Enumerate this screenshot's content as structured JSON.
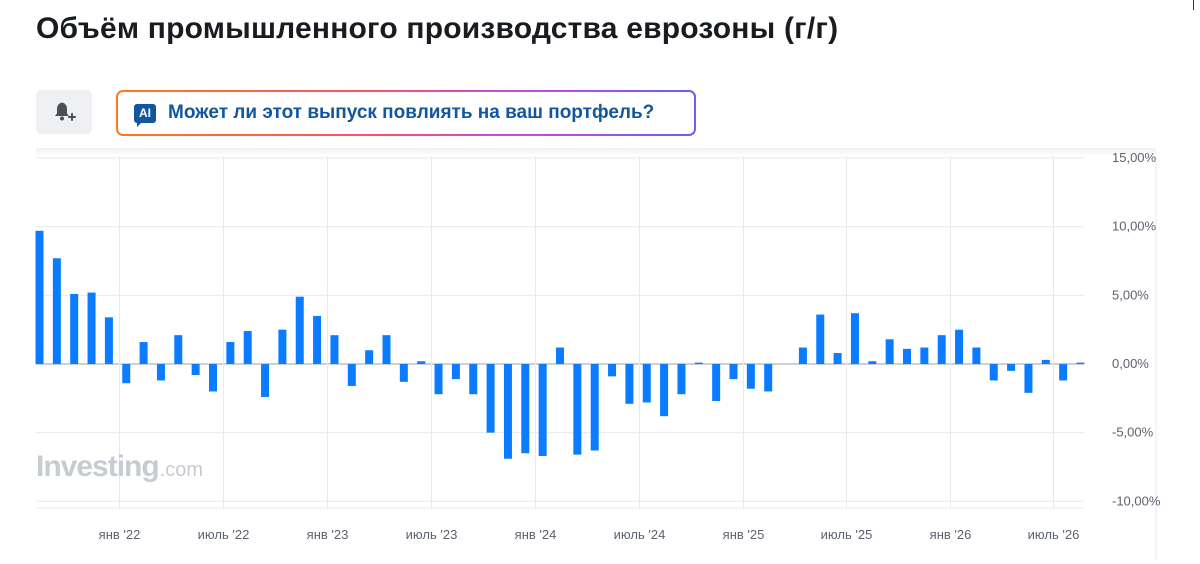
{
  "title": "Объём промышленного производства еврозоны (г/г)",
  "ai_prompt": {
    "badge": "AI",
    "label": "Может ли этот выпуск повлиять на ваш портфель?"
  },
  "watermark": {
    "main": "Investing",
    "sub": ".com"
  },
  "icons": {
    "alert": "bell-plus-icon"
  },
  "colors": {
    "bar": "#0b7cff",
    "grid": "#e6e9ee",
    "zero_line": "#9aa1ab",
    "title": "#181c21",
    "ai_text": "#1256a0"
  },
  "chart_data": {
    "type": "bar",
    "ylim": [
      -11,
      15
    ],
    "y_ticks": [
      "15,00%",
      "10,00%",
      "5,00%",
      "0,00%",
      "-5,00%",
      "-10,00%"
    ],
    "y_tick_values": [
      15,
      10,
      5,
      0,
      -5,
      -10
    ],
    "x_tick_labels": [
      "янв '22",
      "июль '22",
      "янв '23",
      "июль '23",
      "янв '24",
      "июль '24",
      "янв '25",
      "июль '25",
      "янв '26",
      "июль '26"
    ],
    "values": [
      9.7,
      7.7,
      5.1,
      5.2,
      3.4,
      -1.4,
      1.6,
      -1.2,
      2.1,
      -0.8,
      -2.0,
      1.6,
      2.4,
      -2.4,
      2.5,
      4.9,
      3.5,
      2.1,
      -1.6,
      1.0,
      2.1,
      -1.3,
      0.2,
      -2.2,
      -1.1,
      -2.2,
      -5.0,
      -6.9,
      -6.5,
      -6.7,
      1.2,
      -6.6,
      -6.3,
      -0.9,
      -2.9,
      -2.8,
      -3.8,
      -2.2,
      0.1,
      -2.7,
      -1.1,
      -1.8,
      -2.0,
      0.0,
      1.2,
      3.6,
      0.8,
      3.7,
      0.2,
      1.8,
      1.1,
      1.2,
      2.1,
      2.5,
      1.2,
      -1.2,
      -0.5,
      -2.1,
      0.3,
      -1.2,
      0.1
    ],
    "grid": true,
    "y_axis_position": "right"
  }
}
